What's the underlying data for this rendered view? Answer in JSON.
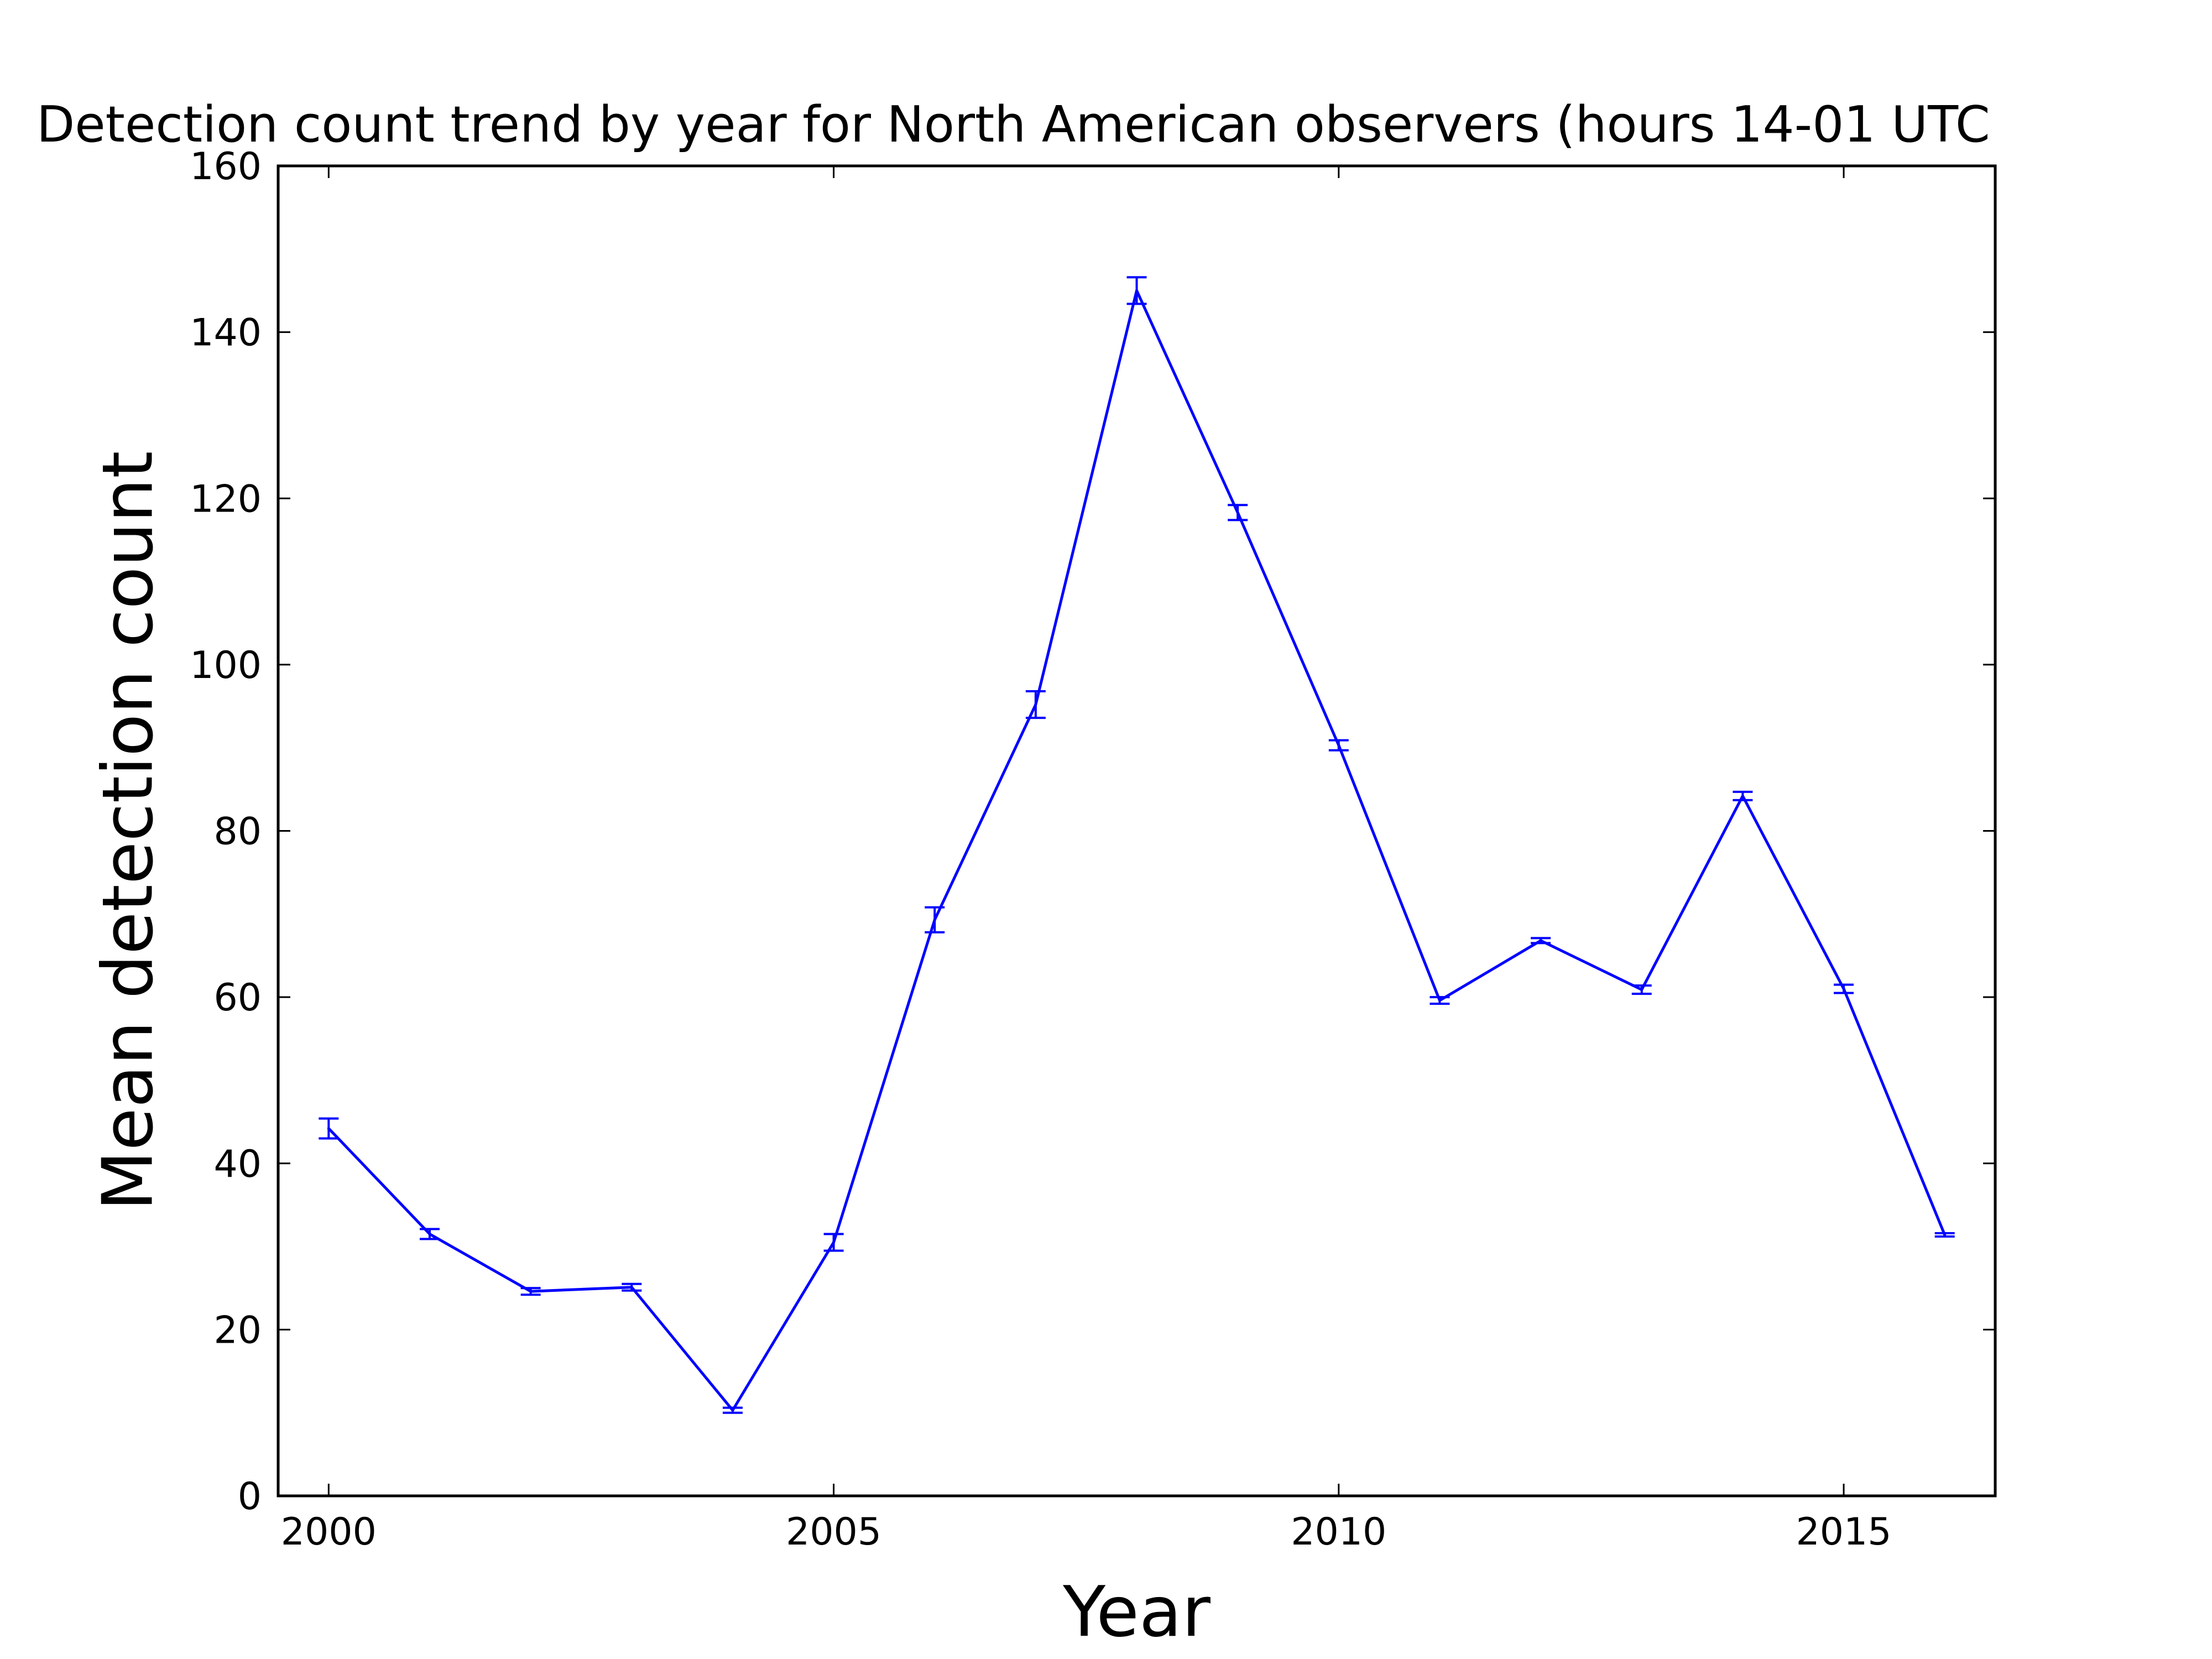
{
  "chart_data": {
    "type": "line",
    "title": "Detection count trend by year for North American observers (hours 14-01 UTC",
    "xlabel": "Year",
    "ylabel": "Mean detection count",
    "xlim": [
      1999.5,
      2016.5
    ],
    "ylim": [
      0,
      160
    ],
    "xticks": [
      2000,
      2005,
      2010,
      2015
    ],
    "yticks": [
      0,
      20,
      40,
      60,
      80,
      100,
      120,
      140,
      160
    ],
    "grid": false,
    "legend": "none",
    "colors": {
      "line": "#0000ff",
      "axes": "#000000",
      "background": "#ffffff"
    },
    "series": [
      {
        "x": [
          2000,
          2001,
          2002,
          2003,
          2004,
          2005,
          2006,
          2007,
          2008,
          2009,
          2010,
          2011,
          2012,
          2013,
          2014,
          2015,
          2016
        ],
        "y": [
          44.2,
          31.5,
          24.6,
          25.1,
          10.3,
          30.5,
          69.3,
          95.2,
          145.0,
          118.3,
          90.3,
          59.6,
          66.8,
          60.9,
          84.2,
          61.0,
          31.4
        ],
        "err": [
          1.2,
          0.6,
          0.4,
          0.4,
          0.3,
          1.0,
          1.5,
          1.6,
          1.6,
          0.9,
          0.6,
          0.4,
          0.3,
          0.5,
          0.5,
          0.5,
          0.2
        ]
      }
    ]
  }
}
